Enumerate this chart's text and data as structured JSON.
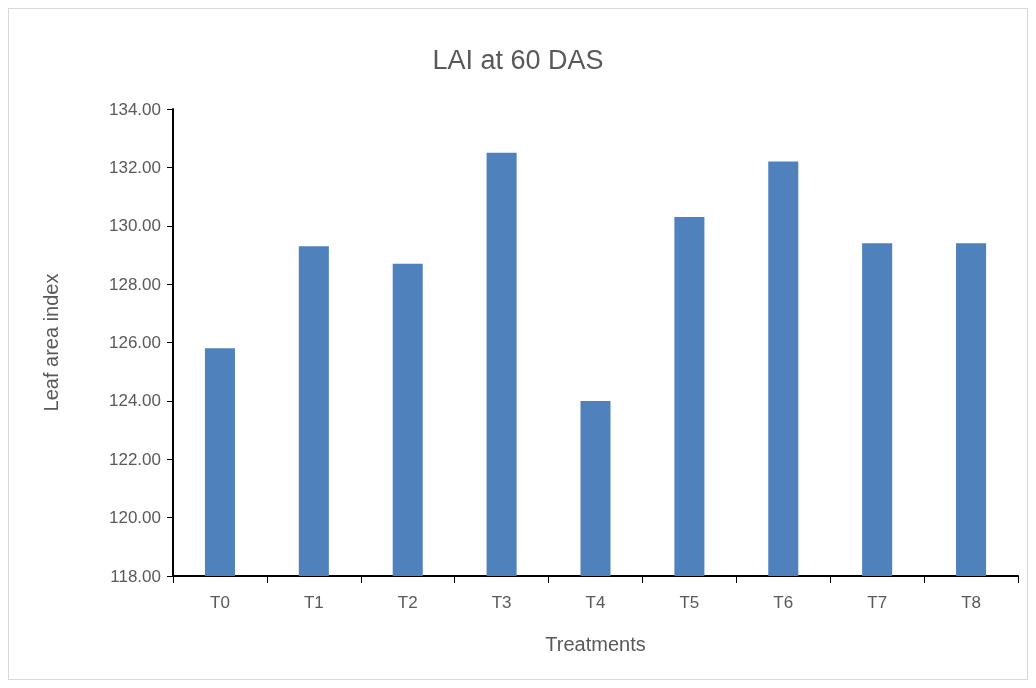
{
  "chart_data": {
    "type": "bar",
    "title": "LAI at 60 DAS",
    "xlabel": "Treatments",
    "ylabel": "Leaf area index",
    "categories": [
      "T0",
      "T1",
      "T2",
      "T3",
      "T4",
      "T5",
      "T6",
      "T7",
      "T8"
    ],
    "values": [
      125.8,
      129.3,
      128.7,
      132.5,
      124.0,
      130.3,
      132.2,
      129.4,
      129.4
    ],
    "color": "#4f81bd",
    "ylim": [
      118,
      134
    ],
    "yticks": [
      {
        "value": 118,
        "label": "118.00"
      },
      {
        "value": 120,
        "label": "120.00"
      },
      {
        "value": 122,
        "label": "122.00"
      },
      {
        "value": 124,
        "label": "124.00"
      },
      {
        "value": 126,
        "label": "126.00"
      },
      {
        "value": 128,
        "label": "128.00"
      },
      {
        "value": 130,
        "label": "130.00"
      },
      {
        "value": 132,
        "label": "132.00"
      },
      {
        "value": 134,
        "label": "134.00"
      }
    ],
    "grid": false
  }
}
